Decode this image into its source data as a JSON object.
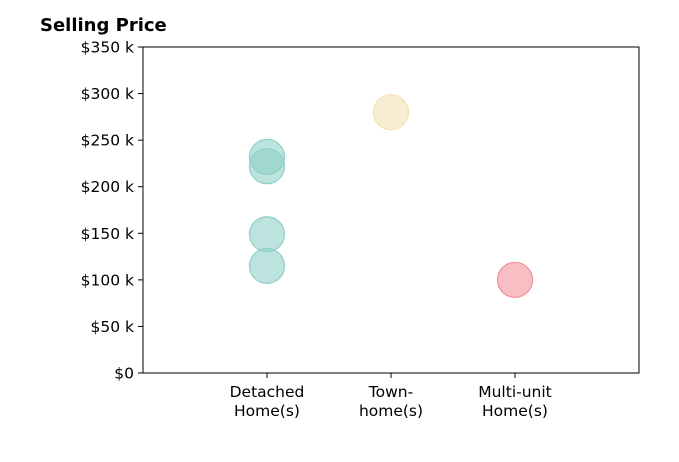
{
  "chart_data": {
    "type": "scatter",
    "title": "Selling Price",
    "xlabel": "",
    "ylabel": "",
    "categories": [
      [
        "Detached",
        "Home(s)"
      ],
      [
        "Town-",
        "home(s)"
      ],
      [
        "Multi-unit",
        "Home(s)"
      ]
    ],
    "ylim": [
      0,
      350000
    ],
    "yticks": [
      {
        "value": 0,
        "label": "$0"
      },
      {
        "value": 50000,
        "label": "$50 k"
      },
      {
        "value": 100000,
        "label": "$100 k"
      },
      {
        "value": 150000,
        "label": "$150 k"
      },
      {
        "value": 200000,
        "label": "$200 k"
      },
      {
        "value": 250000,
        "label": "$250 k"
      },
      {
        "value": 300000,
        "label": "$300 k"
      },
      {
        "value": 350000,
        "label": "$350 k"
      }
    ],
    "points": [
      {
        "category": 0,
        "value": 232000
      },
      {
        "category": 0,
        "value": 222000
      },
      {
        "category": 0,
        "value": 149000
      },
      {
        "category": 0,
        "value": 115000
      },
      {
        "category": 1,
        "value": 280000
      },
      {
        "category": 2,
        "value": 100000
      }
    ],
    "colors": [
      "#8fd0c6",
      "#f5e0b3",
      "#f2939b"
    ],
    "grid": false,
    "legend": "none"
  }
}
